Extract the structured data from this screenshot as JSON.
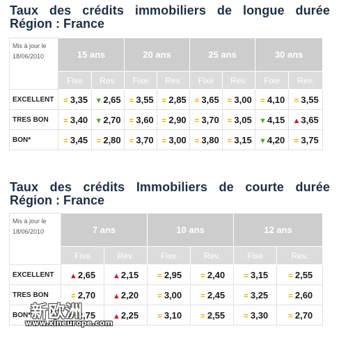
{
  "table_long": {
    "title_line1": "Taux des crédits immobiliers de longue durée",
    "title_line2": "Région : France",
    "update_label": "Mis à jour le 18/06/2010",
    "terms": [
      "15 ans",
      "20 ans",
      "25 ans",
      "30 ans"
    ],
    "subcols": [
      "Fixe",
      "Rev."
    ],
    "rows": [
      {
        "label": "EXCELLENT",
        "cells": [
          {
            "t": "eq",
            "v": "3,35"
          },
          {
            "t": "down",
            "v": "2,65"
          },
          {
            "t": "eq",
            "v": "3,55"
          },
          {
            "t": "eq",
            "v": "2,85"
          },
          {
            "t": "eq",
            "v": "3,65"
          },
          {
            "t": "eq",
            "v": "3,00"
          },
          {
            "t": "eq",
            "v": "4,10"
          },
          {
            "t": "eq",
            "v": "3,55"
          }
        ]
      },
      {
        "label": "TRES BON",
        "cells": [
          {
            "t": "eq",
            "v": "3,40"
          },
          {
            "t": "down",
            "v": "2,70"
          },
          {
            "t": "eq",
            "v": "3,60"
          },
          {
            "t": "eq",
            "v": "2,90"
          },
          {
            "t": "eq",
            "v": "3,70"
          },
          {
            "t": "eq",
            "v": "3,05"
          },
          {
            "t": "down",
            "v": "4,15"
          },
          {
            "t": "up",
            "v": "3,65"
          }
        ]
      },
      {
        "label": "BON*",
        "cells": [
          {
            "t": "eq",
            "v": "3,45"
          },
          {
            "t": "eq",
            "v": "2,80"
          },
          {
            "t": "eq",
            "v": "3,70"
          },
          {
            "t": "eq",
            "v": "3,00"
          },
          {
            "t": "eq",
            "v": "3,80"
          },
          {
            "t": "eq",
            "v": "3,15"
          },
          {
            "t": "down",
            "v": "4,20"
          },
          {
            "t": "eq",
            "v": "3,75"
          }
        ]
      }
    ]
  },
  "table_short": {
    "title_line1": "Taux des crédits Immobiliers de courte durée",
    "title_line2": "Région : France",
    "update_label": "Mis à jour le 18/06/2010",
    "terms": [
      "7 ans",
      "10 ans",
      "12 ans"
    ],
    "subcols": [
      "Fixe",
      "Rev."
    ],
    "rows": [
      {
        "label": "EXCELLENT",
        "cells": [
          {
            "t": "up",
            "v": "2,65"
          },
          {
            "t": "up",
            "v": "2,15"
          },
          {
            "t": "eq",
            "v": "2,95"
          },
          {
            "t": "eq",
            "v": "2,40"
          },
          {
            "t": "eq",
            "v": "3,15"
          },
          {
            "t": "eq",
            "v": "2,55"
          }
        ]
      },
      {
        "label": "TRES BON",
        "cells": [
          {
            "t": "eq",
            "v": "2,70"
          },
          {
            "t": "up",
            "v": "2,20"
          },
          {
            "t": "eq",
            "v": "3,00"
          },
          {
            "t": "eq",
            "v": "2,45"
          },
          {
            "t": "eq",
            "v": "3,25"
          },
          {
            "t": "eq",
            "v": "2,60"
          }
        ]
      },
      {
        "label": "BON*",
        "cells": [
          {
            "t": "down",
            "v": "2,75"
          },
          {
            "t": "up",
            "v": "2,25"
          },
          {
            "t": "eq",
            "v": "3,10"
          },
          {
            "t": "eq",
            "v": "2,55"
          },
          {
            "t": "eq",
            "v": "3,30"
          },
          {
            "t": "eq",
            "v": "2,70"
          }
        ]
      }
    ]
  },
  "symbols": {
    "eq": "=",
    "down": "▼",
    "up": "▲"
  },
  "symbol_names": {
    "eq": "equal-icon",
    "down": "arrow-down-icon",
    "up": "arrow-up-icon"
  },
  "colors": {
    "equal": "#f0a800",
    "down": "#4caa2a",
    "up": "#c51d1d",
    "header": "#cdcdcd",
    "title": "#1e2f44"
  },
  "watermark": {
    "cn": "新欧洲",
    "url": "www.xineurope.com"
  }
}
